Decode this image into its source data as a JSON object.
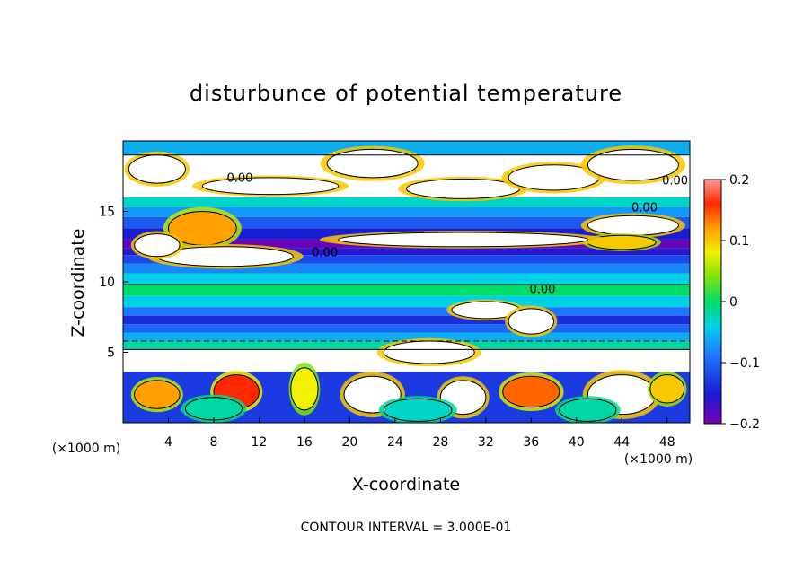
{
  "chart_data": {
    "type": "heatmap",
    "title": "disturbunce of potential temperature",
    "xlabel": "X-coordinate",
    "ylabel": "Z-coordinate",
    "x_unit": "(×1000 m)",
    "z_unit": "(×1000 m)",
    "xlim": [
      0,
      50
    ],
    "ylim": [
      0,
      20
    ],
    "x_ticks": [
      "4",
      "8",
      "12",
      "16",
      "20",
      "24",
      "28",
      "32",
      "36",
      "40",
      "44",
      "48"
    ],
    "y_ticks": [
      "5",
      "10",
      "15"
    ],
    "colorbar_range": [
      -0.2,
      0.2
    ],
    "colorbar_ticks": [
      "0.2",
      "0.1",
      "0",
      "−0.1",
      "−0.2"
    ],
    "contour_labels": [
      "0.00",
      "0.00",
      "0.00",
      "0.00",
      "0.00"
    ],
    "footer": "CONTOUR INTERVAL = 3.000E-01",
    "bands": [
      {
        "z0": 19.0,
        "z1": 20.0,
        "value": -0.06
      },
      {
        "z0": 16.0,
        "z1": 19.0,
        "value": 0.2
      },
      {
        "z0": 15.3,
        "z1": 16.0,
        "value": -0.03
      },
      {
        "z0": 14.6,
        "z1": 15.3,
        "value": -0.07
      },
      {
        "z0": 13.8,
        "z1": 14.6,
        "value": -0.11
      },
      {
        "z0": 13.0,
        "z1": 13.8,
        "value": -0.15
      },
      {
        "z0": 12.4,
        "z1": 13.0,
        "value": -0.19
      },
      {
        "z0": 11.9,
        "z1": 12.4,
        "value": -0.16
      },
      {
        "z0": 11.3,
        "z1": 11.9,
        "value": -0.12
      },
      {
        "z0": 10.6,
        "z1": 11.3,
        "value": -0.08
      },
      {
        "z0": 9.8,
        "z1": 10.6,
        "value": -0.04
      },
      {
        "z0": 9.0,
        "z1": 9.8,
        "value": 0.0
      },
      {
        "z0": 8.2,
        "z1": 9.0,
        "value": -0.04
      },
      {
        "z0": 7.6,
        "z1": 8.2,
        "value": -0.09
      },
      {
        "z0": 7.0,
        "z1": 7.6,
        "value": -0.14
      },
      {
        "z0": 6.4,
        "z1": 7.0,
        "value": -0.1
      },
      {
        "z0": 5.8,
        "z1": 6.4,
        "value": -0.06
      },
      {
        "z0": 5.2,
        "z1": 5.8,
        "value": -0.02
      },
      {
        "z0": 3.6,
        "z1": 5.2,
        "value": 0.2
      },
      {
        "z0": 0.0,
        "z1": 3.6,
        "value": -0.13
      }
    ],
    "blobs": [
      {
        "x": 3,
        "z": 18.0,
        "rx": 2.5,
        "rz": 1.0,
        "value": 0.2
      },
      {
        "x": 13,
        "z": 16.8,
        "rx": 6,
        "rz": 0.6,
        "value": 0.2
      },
      {
        "x": 22,
        "z": 18.4,
        "rx": 4,
        "rz": 1.0,
        "value": 0.2
      },
      {
        "x": 30,
        "z": 16.6,
        "rx": 5,
        "rz": 0.7,
        "value": 0.2
      },
      {
        "x": 38,
        "z": 17.4,
        "rx": 4,
        "rz": 0.9,
        "value": 0.2
      },
      {
        "x": 45,
        "z": 18.3,
        "rx": 4,
        "rz": 1.1,
        "value": 0.2
      },
      {
        "x": 7,
        "z": 13.8,
        "rx": 3,
        "rz": 1.2,
        "value": 0.12
      },
      {
        "x": 9,
        "z": 11.8,
        "rx": 6,
        "rz": 0.7,
        "value": 0.2
      },
      {
        "x": 3,
        "z": 12.6,
        "rx": 2,
        "rz": 0.8,
        "value": 0.2
      },
      {
        "x": 45,
        "z": 14.0,
        "rx": 4,
        "rz": 0.7,
        "value": 0.2
      },
      {
        "x": 44,
        "z": 12.8,
        "rx": 3,
        "rz": 0.5,
        "value": 0.1
      },
      {
        "x": 30,
        "z": 13.0,
        "rx": 11,
        "rz": 0.5,
        "value": 0.2
      },
      {
        "x": 32,
        "z": 8.0,
        "rx": 3,
        "rz": 0.6,
        "value": 0.2
      },
      {
        "x": 36,
        "z": 7.2,
        "rx": 2,
        "rz": 0.9,
        "value": 0.2
      },
      {
        "x": 27,
        "z": 5.0,
        "rx": 4,
        "rz": 0.8,
        "value": 0.2
      },
      {
        "x": 3,
        "z": 2.0,
        "rx": 2,
        "rz": 1.0,
        "value": 0.12
      },
      {
        "x": 10,
        "z": 2.2,
        "rx": 2,
        "rz": 1.2,
        "value": 0.16
      },
      {
        "x": 16,
        "z": 2.4,
        "rx": 1.2,
        "rz": 1.5,
        "value": 0.08
      },
      {
        "x": 22,
        "z": 2.0,
        "rx": 2.5,
        "rz": 1.3,
        "value": 0.2
      },
      {
        "x": 30,
        "z": 1.8,
        "rx": 2,
        "rz": 1.2,
        "value": 0.2
      },
      {
        "x": 36,
        "z": 2.2,
        "rx": 2.5,
        "rz": 1.1,
        "value": 0.14
      },
      {
        "x": 44,
        "z": 2.0,
        "rx": 3,
        "rz": 1.4,
        "value": 0.2
      },
      {
        "x": 48,
        "z": 2.4,
        "rx": 1.5,
        "rz": 1.0,
        "value": 0.1
      },
      {
        "x": 8,
        "z": 1.0,
        "rx": 2.5,
        "rz": 0.8,
        "value": -0.02
      },
      {
        "x": 26,
        "z": 0.9,
        "rx": 3,
        "rz": 0.8,
        "value": -0.03
      },
      {
        "x": 41,
        "z": 0.9,
        "rx": 2.5,
        "rz": 0.8,
        "value": -0.02
      }
    ]
  }
}
